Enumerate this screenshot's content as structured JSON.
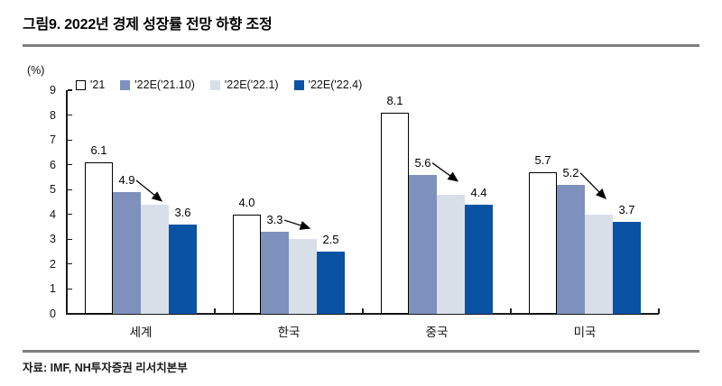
{
  "title": "그림9. 2022년 경제 성장률 전망 하향 조정",
  "source": "자료: IMF, NH투자증권 리서치본부",
  "colors": {
    "bar_2021": "#FFFFFF",
    "bar_2021_outline": "#000000",
    "bar_22e_2110": "#7E91BC",
    "bar_22e_221": "#D8DFE9",
    "bar_22e_224": "#0A52A4",
    "axis": "#1a1a1a",
    "divider": "#7f7f7f",
    "arrow": "#000000"
  },
  "chart_data": {
    "type": "bar",
    "categories": [
      "세계",
      "한국",
      "중국",
      "미국"
    ],
    "series": [
      {
        "name": "'21",
        "color": "#FFFFFF",
        "outline": "#000000",
        "labeled": true,
        "values": [
          6.1,
          4.0,
          8.1,
          5.7
        ]
      },
      {
        "name": "'22E('21.10)",
        "color": "#7E91BC",
        "outline": null,
        "labeled": true,
        "values": [
          4.9,
          3.3,
          5.6,
          5.2
        ]
      },
      {
        "name": "'22E('22.1)",
        "color": "#D8DFE9",
        "outline": null,
        "labeled": false,
        "values": [
          4.4,
          3.0,
          4.8,
          4.0
        ]
      },
      {
        "name": "'22E('22.4)",
        "color": "#0A52A4",
        "outline": null,
        "labeled": true,
        "values": [
          3.6,
          2.5,
          4.4,
          3.7
        ]
      }
    ],
    "ylabel": "(%)",
    "ylim": [
      0,
      9
    ],
    "ytick_step": 1,
    "grid": false,
    "legend_position": "top-left-inside",
    "annotations": {
      "decline_arrows_from_series": "'22E('21.10)",
      "decline_arrows_to_series": "'22E('22.4)"
    }
  }
}
